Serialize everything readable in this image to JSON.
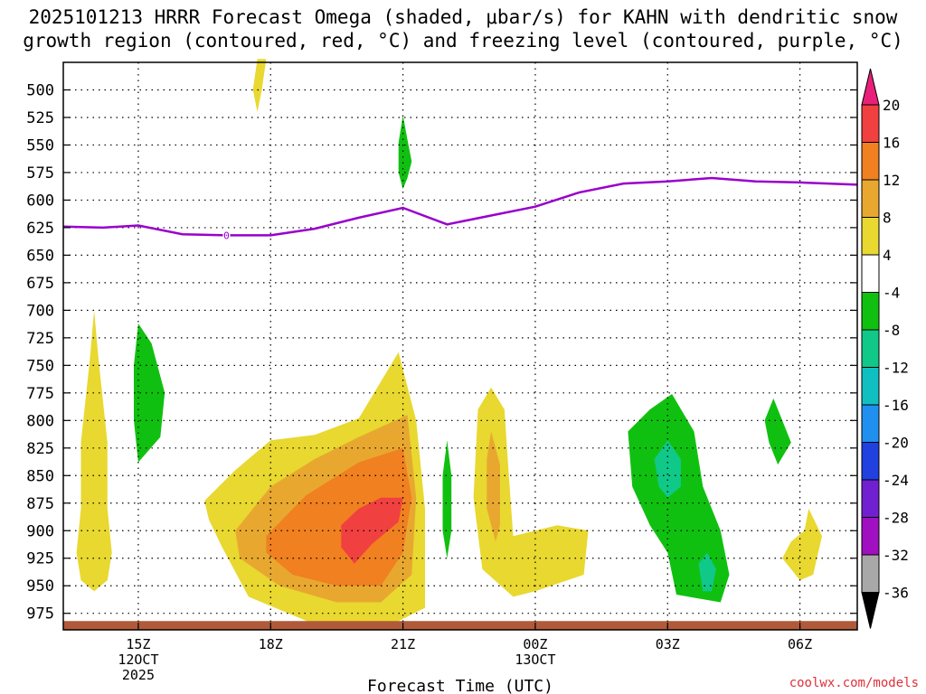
{
  "chart_data": {
    "type": "heatmap",
    "title_line1": "2025101213 HRRR Forecast Omega (shaded, μbar/s) for KAHN with dendritic snow",
    "title_line2": "growth region (contoured, red, °C) and freezing level (contoured, purple, °C)",
    "xlabel": "Forecast Time (UTC)",
    "ylabel": "",
    "x_range_hours": [
      13.3,
      31.3
    ],
    "y_range_hPa": [
      475,
      990
    ],
    "x_ticks": [
      {
        "hour": 15,
        "label": "15Z",
        "sub1": "12OCT",
        "sub2": "2025"
      },
      {
        "hour": 18,
        "label": "18Z",
        "sub1": "",
        "sub2": ""
      },
      {
        "hour": 21,
        "label": "21Z",
        "sub1": "",
        "sub2": ""
      },
      {
        "hour": 24,
        "label": "00Z",
        "sub1": "13OCT",
        "sub2": ""
      },
      {
        "hour": 27,
        "label": "03Z",
        "sub1": "",
        "sub2": ""
      },
      {
        "hour": 30,
        "label": "06Z",
        "sub1": "",
        "sub2": ""
      }
    ],
    "y_ticks": [
      500,
      525,
      550,
      575,
      600,
      625,
      650,
      675,
      700,
      725,
      750,
      775,
      800,
      825,
      850,
      875,
      900,
      925,
      950,
      975
    ],
    "colorbar": {
      "labels": [
        "20",
        "16",
        "12",
        "8",
        "4",
        "-4",
        "-8",
        "-12",
        "-16",
        "-20",
        "-24",
        "-28",
        "-32",
        "-36"
      ],
      "colors": [
        "#e8207a",
        "#f04040",
        "#f08020",
        "#e8a830",
        "#e8d830",
        "#ffffff",
        "#10c010",
        "#10c888",
        "#10c0c0",
        "#2090f0",
        "#2040e0",
        "#7020d0",
        "#a010c0",
        "#a8a8a8",
        "#000000"
      ]
    },
    "freezing_level": {
      "color": "#9900cc",
      "label": "0",
      "label_point": [
        17.0,
        632
      ],
      "points": [
        [
          13.3,
          624
        ],
        [
          14.2,
          625
        ],
        [
          15.0,
          623
        ],
        [
          16.0,
          631
        ],
        [
          17.0,
          632
        ],
        [
          18.0,
          632
        ],
        [
          19.0,
          626
        ],
        [
          20.0,
          616
        ],
        [
          21.0,
          607
        ],
        [
          22.0,
          622
        ],
        [
          23.0,
          614
        ],
        [
          24.0,
          606
        ],
        [
          25.0,
          593
        ],
        [
          26.0,
          585
        ],
        [
          27.0,
          583
        ],
        [
          28.0,
          580
        ],
        [
          29.0,
          583
        ],
        [
          30.0,
          584
        ],
        [
          31.3,
          586
        ]
      ]
    },
    "omega_regions": [
      {
        "level": "4",
        "color": "#e8d830",
        "points": [
          [
            14.0,
            955
          ],
          [
            14.3,
            945
          ],
          [
            14.4,
            920
          ],
          [
            14.3,
            880
          ],
          [
            14.3,
            820
          ],
          [
            14.1,
            745
          ],
          [
            14.0,
            700
          ],
          [
            13.9,
            745
          ],
          [
            13.7,
            820
          ],
          [
            13.7,
            880
          ],
          [
            13.6,
            920
          ],
          [
            13.7,
            945
          ]
        ]
      },
      {
        "level": "4",
        "color": "#e8d830",
        "points": [
          [
            17.7,
            472
          ],
          [
            17.9,
            472
          ],
          [
            17.8,
            500
          ],
          [
            17.7,
            520
          ],
          [
            17.6,
            500
          ]
        ]
      },
      {
        "level": "-4",
        "color": "#10c010",
        "points": [
          [
            15.0,
            712
          ],
          [
            15.3,
            730
          ],
          [
            15.6,
            775
          ],
          [
            15.5,
            815
          ],
          [
            15.0,
            838
          ],
          [
            14.9,
            800
          ],
          [
            14.9,
            750
          ]
        ]
      },
      {
        "level": "-4",
        "color": "#10c010",
        "points": [
          [
            21.0,
            523
          ],
          [
            21.1,
            545
          ],
          [
            21.2,
            565
          ],
          [
            21.1,
            580
          ],
          [
            21.0,
            590
          ],
          [
            20.9,
            575
          ],
          [
            20.9,
            548
          ]
        ]
      },
      {
        "level": "-4",
        "color": "#10c010",
        "points": [
          [
            22.0,
            818
          ],
          [
            22.1,
            850
          ],
          [
            22.1,
            900
          ],
          [
            22.0,
            925
          ],
          [
            21.9,
            900
          ],
          [
            21.9,
            850
          ]
        ]
      },
      {
        "level": "4",
        "color": "#e8d830",
        "points": [
          [
            16.5,
            873
          ],
          [
            17.2,
            845
          ],
          [
            18.0,
            818
          ],
          [
            19.0,
            813
          ],
          [
            20.0,
            798
          ],
          [
            20.9,
            738
          ],
          [
            21.3,
            800
          ],
          [
            21.5,
            880
          ],
          [
            21.5,
            970
          ],
          [
            20.5,
            990
          ],
          [
            19.0,
            985
          ],
          [
            17.5,
            960
          ],
          [
            16.9,
            915
          ],
          [
            16.6,
            890
          ]
        ]
      },
      {
        "level": "8",
        "color": "#e8a830",
        "points": [
          [
            17.2,
            900
          ],
          [
            18.0,
            860
          ],
          [
            19.0,
            835
          ],
          [
            20.0,
            815
          ],
          [
            21.1,
            795
          ],
          [
            21.3,
            870
          ],
          [
            21.2,
            940
          ],
          [
            20.5,
            965
          ],
          [
            19.5,
            965
          ],
          [
            18.2,
            950
          ],
          [
            17.3,
            925
          ]
        ]
      },
      {
        "level": "12",
        "color": "#f08020",
        "points": [
          [
            17.9,
            905
          ],
          [
            18.8,
            868
          ],
          [
            20.0,
            838
          ],
          [
            21.0,
            825
          ],
          [
            21.2,
            870
          ],
          [
            21.0,
            920
          ],
          [
            20.5,
            950
          ],
          [
            19.5,
            950
          ],
          [
            18.5,
            940
          ],
          [
            17.9,
            920
          ]
        ]
      },
      {
        "level": "16",
        "color": "#f04040",
        "points": [
          [
            19.6,
            895
          ],
          [
            20.0,
            880
          ],
          [
            20.5,
            870
          ],
          [
            21.0,
            870
          ],
          [
            20.9,
            892
          ],
          [
            20.3,
            912
          ],
          [
            19.9,
            930
          ],
          [
            19.6,
            915
          ]
        ]
      },
      {
        "level": "4",
        "color": "#e8d830",
        "points": [
          [
            22.7,
            790
          ],
          [
            23.0,
            770
          ],
          [
            23.3,
            790
          ],
          [
            23.4,
            850
          ],
          [
            23.5,
            905
          ],
          [
            24.0,
            900
          ],
          [
            24.5,
            895
          ],
          [
            25.2,
            900
          ],
          [
            25.1,
            940
          ],
          [
            24.0,
            955
          ],
          [
            23.5,
            960
          ],
          [
            22.8,
            935
          ],
          [
            22.6,
            870
          ]
        ]
      },
      {
        "level": "8",
        "color": "#e8a830",
        "points": [
          [
            23.0,
            810
          ],
          [
            23.2,
            840
          ],
          [
            23.2,
            895
          ],
          [
            23.1,
            910
          ],
          [
            22.9,
            880
          ],
          [
            22.9,
            835
          ]
        ]
      },
      {
        "level": "-4",
        "color": "#10c010",
        "points": [
          [
            26.1,
            810
          ],
          [
            26.6,
            790
          ],
          [
            27.1,
            776
          ],
          [
            27.6,
            810
          ],
          [
            27.8,
            860
          ],
          [
            28.2,
            900
          ],
          [
            28.4,
            940
          ],
          [
            28.2,
            965
          ],
          [
            27.2,
            958
          ],
          [
            27.0,
            920
          ],
          [
            26.6,
            895
          ],
          [
            26.2,
            860
          ]
        ]
      },
      {
        "level": "-8",
        "color": "#10c888",
        "points": [
          [
            26.7,
            835
          ],
          [
            27.0,
            818
          ],
          [
            27.3,
            835
          ],
          [
            27.3,
            860
          ],
          [
            27.0,
            870
          ],
          [
            26.8,
            860
          ]
        ]
      },
      {
        "level": "-8",
        "color": "#10c888",
        "points": [
          [
            27.7,
            930
          ],
          [
            27.9,
            920
          ],
          [
            28.1,
            935
          ],
          [
            28.0,
            955
          ],
          [
            27.8,
            955
          ]
        ]
      },
      {
        "level": "-4",
        "color": "#10c010",
        "points": [
          [
            29.4,
            780
          ],
          [
            29.6,
            800
          ],
          [
            29.8,
            820
          ],
          [
            29.5,
            840
          ],
          [
            29.3,
            820
          ],
          [
            29.2,
            800
          ]
        ]
      },
      {
        "level": "4",
        "color": "#e8d830",
        "points": [
          [
            30.1,
            900
          ],
          [
            30.2,
            880
          ],
          [
            30.5,
            905
          ],
          [
            30.3,
            940
          ],
          [
            30.0,
            945
          ],
          [
            29.6,
            925
          ],
          [
            29.8,
            910
          ]
        ]
      }
    ],
    "surface_band": {
      "color": "#b05a3a",
      "top_hPa": 982,
      "bottom_hPa": 990
    }
  },
  "watermark": "coolwx.com/models"
}
